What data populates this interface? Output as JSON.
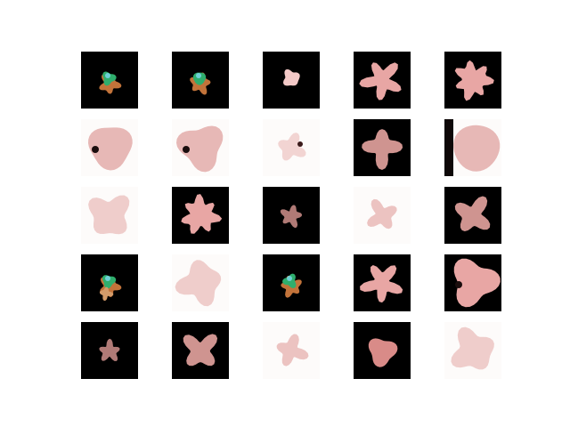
{
  "figure": {
    "rows": 5,
    "cols": 5,
    "background_color": "#ffffff",
    "samples": [
      {
        "bg": "dark",
        "shape": "green-sprite"
      },
      {
        "bg": "dark",
        "shape": "green-sprite"
      },
      {
        "bg": "dark",
        "shape": "small-blob"
      },
      {
        "bg": "dark",
        "shape": "pink-star"
      },
      {
        "bg": "dark",
        "shape": "pink-gear"
      },
      {
        "bg": "light",
        "shape": "pink-cloud-dark-spot"
      },
      {
        "bg": "light",
        "shape": "pink-cloud-dark-spot"
      },
      {
        "bg": "light",
        "shape": "faint-pink-spot"
      },
      {
        "bg": "dark",
        "shape": "pink-figure"
      },
      {
        "bg": "light",
        "shape": "pink-cloud-dark-edge"
      },
      {
        "bg": "light",
        "shape": "faint-pink-cloud"
      },
      {
        "bg": "dark",
        "shape": "pink-gear"
      },
      {
        "bg": "dark",
        "shape": "small-figure"
      },
      {
        "bg": "light",
        "shape": "faint-pink-diamond"
      },
      {
        "bg": "dark",
        "shape": "pink-figure"
      },
      {
        "bg": "dark",
        "shape": "green-figure"
      },
      {
        "bg": "light",
        "shape": "faint-pink-cloud"
      },
      {
        "bg": "dark",
        "shape": "green-sprite"
      },
      {
        "bg": "dark",
        "shape": "pink-star"
      },
      {
        "bg": "dark",
        "shape": "pink-cloud-dark-spot"
      },
      {
        "bg": "dark",
        "shape": "small-figure"
      },
      {
        "bg": "dark",
        "shape": "pink-figure"
      },
      {
        "bg": "light",
        "shape": "faint-pink-diamond"
      },
      {
        "bg": "dark",
        "shape": "pink-blob"
      },
      {
        "bg": "light",
        "shape": "faint-pink-cloud"
      }
    ]
  }
}
